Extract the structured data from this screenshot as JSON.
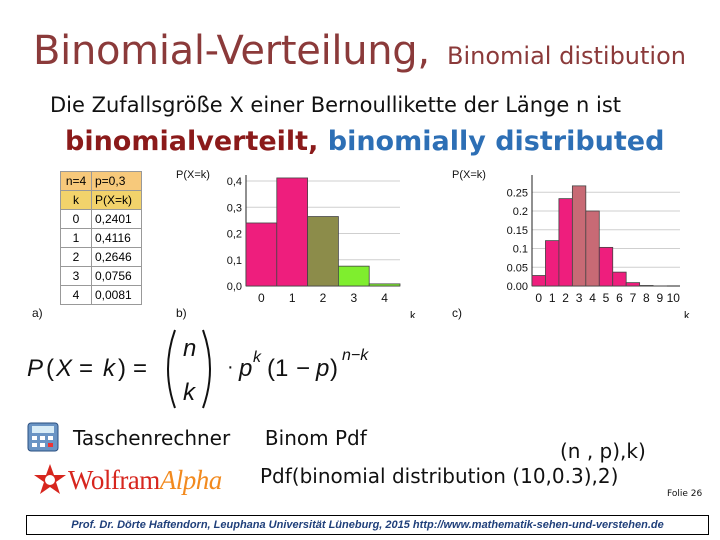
{
  "title": {
    "main": "Binomial-Verteilung,",
    "sub": "Binomial distibution"
  },
  "intro": {
    "line1": "Die Zufallsgröße X einer Bernoullikette der Länge n ist",
    "line2_de": "binomialverteilt,",
    "line2_en": " binomially distributed"
  },
  "table": {
    "n_label": "n=4",
    "p_label": "p=0,3",
    "col_k": "k",
    "col_p": "P(X=k)",
    "rows": [
      {
        "k": "0",
        "p": "0,2401"
      },
      {
        "k": "1",
        "p": "0,4116"
      },
      {
        "k": "2",
        "p": "0,2646"
      },
      {
        "k": "3",
        "p": "0,0756"
      },
      {
        "k": "4",
        "p": "0,0081"
      }
    ]
  },
  "panel_labels": {
    "a": "a)",
    "b": "b)",
    "c": "c)"
  },
  "chart_data": [
    {
      "type": "bar",
      "title": "",
      "ylabel": "P(X=k)",
      "xlabel": "k",
      "categories": [
        "0",
        "1",
        "2",
        "3",
        "4"
      ],
      "values": [
        0.2401,
        0.4116,
        0.2646,
        0.0756,
        0.0081
      ],
      "ylim": [
        0,
        0.4
      ],
      "yticks": [
        "0,4",
        "0,3",
        "0,2",
        "0,1",
        "0,0"
      ],
      "colors": [
        "#ee1e7d",
        "#ee1e7d",
        "#8c8c4a",
        "#7fee2e",
        "#7fee2e"
      ]
    },
    {
      "type": "bar",
      "title": "",
      "ylabel": "P(X=k)",
      "xlabel": "k",
      "categories": [
        "0",
        "1",
        "2",
        "3",
        "4",
        "5",
        "6",
        "7",
        "8",
        "9",
        "10"
      ],
      "values": [
        0.028,
        0.121,
        0.233,
        0.267,
        0.2,
        0.103,
        0.037,
        0.009,
        0.0014,
        0.0001,
        0.0
      ],
      "ylim": [
        0,
        0.28
      ],
      "yticks": [
        "0.25",
        "0.2",
        "0.15",
        "0.1",
        "0.05",
        "0.00"
      ],
      "colors": [
        "#ee1e7d",
        "#ee1e7d",
        "#ee1e7d",
        "#c86a75",
        "#c86a75",
        "#ee1e7d",
        "#ee1e7d",
        "#ee1e7d",
        "#ee1e7d",
        "#ee1e7d",
        "#ee1e7d"
      ]
    }
  ],
  "bottom": {
    "calc_label": "Taschenrechner",
    "calc_cmd": "Binom Pdf",
    "calc_params": "(n , p),k)",
    "wolfram_brand_a": "Wolfram",
    "wolfram_brand_b": "Alpha",
    "wolfram_cmd": "Pdf(binomial distribution (10,0.3),2)",
    "slide_no": "Folie 26"
  },
  "footer": "Prof. Dr. Dörte Haftendorn, Leuphana Universität Lüneburg, 2015  http://www.mathematik-sehen-und-verstehen.de"
}
